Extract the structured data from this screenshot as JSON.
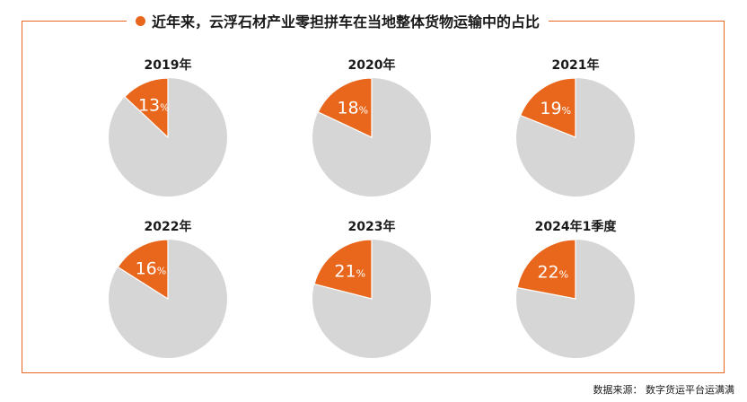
{
  "header": {
    "title": "近年来，云浮石材产业零担拼车在当地整体货物运输中的占比"
  },
  "footer": {
    "source": "数据来源： 数字货运平台运满满"
  },
  "colors": {
    "accent": "#e8671c",
    "remainder": "#d6d6d6",
    "label": "#ffffff"
  },
  "chart_data": {
    "type": "pie",
    "title": "近年来，云浮石材产业零担拼车在当地整体货物运输中的占比",
    "unit": "%",
    "pies": [
      {
        "category": "2019年",
        "value": 13
      },
      {
        "category": "2020年",
        "value": 18
      },
      {
        "category": "2021年",
        "value": 19
      },
      {
        "category": "2022年",
        "value": 16
      },
      {
        "category": "2023年",
        "value": 21
      },
      {
        "category": "2024年1季度",
        "value": 22
      }
    ]
  }
}
